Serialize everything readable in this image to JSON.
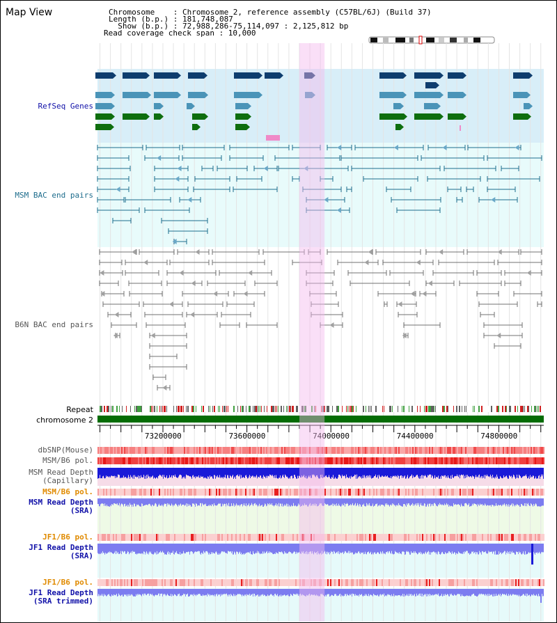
{
  "header": {
    "view_title": "Map View",
    "chromosome_line": "Chromosome    : Chromosome 2, reference assembly (C57BL/6J) (Build 37)",
    "length_line": "Length (b.p.) : 181,748,087",
    "show_line": "  Show (b.p.) : 72,988,286-75,114,097 : 2,125,812 bp",
    "coverage_line": "Read coverage check span : 10,000"
  },
  "tracks": {
    "refseq": "RefSeq Genes",
    "msm_bac": "MSM BAC end pairs",
    "b6n_bac": "B6N BAC end pairs",
    "repeat": "Repeat",
    "chromosome": "chromosome 2",
    "dbsnp": "dbSNP(Mouse)",
    "msm_b6_pol": "MSM/B6 pol.",
    "msm_depth_cap_1": "MSM Read Depth",
    "msm_depth_cap_2": "(Capillary)",
    "msm_b6_pol_2": "MSM/B6 pol.",
    "msm_depth_sra_1": "MSM Read Depth",
    "msm_depth_sra_2": "(SRA)",
    "jf1_b6_pol": "JF1/B6 pol.",
    "jf1_depth_sra_1": "JF1 Read Depth",
    "jf1_depth_sra_2": "(SRA)",
    "jf1_b6_pol_2": "JF1/B6 pol.",
    "jf1_depth_trim_1": "JF1 Read Depth",
    "jf1_depth_trim_2": "(SRA trimmed)"
  },
  "axis": {
    "range": [
      72988286,
      75114097
    ],
    "labels": [
      "73200000",
      "73600000",
      "74000000",
      "74400000",
      "74800000"
    ],
    "label_values": [
      73200000,
      73600000,
      74000000,
      74400000,
      74800000
    ],
    "highlight_range": [
      73950000,
      74070000
    ]
  },
  "colors": {
    "refseq_bg": "#d8eef8",
    "msm_bg": "#e8fbfb",
    "highlight": "#f7d8f3",
    "gene_dark": "#0e3d6e",
    "gene_mid": "#4a94b8",
    "gene_green": "#0e6e0e",
    "msm_line": "#1d6c8c",
    "b6n_line": "#707070",
    "chromosome": "#046c04",
    "depth_cap": "#1a1ad8",
    "depth_sra": "#7c7cf0",
    "label_orange": "#e08a00",
    "label_blue": "#1010a8"
  }
}
